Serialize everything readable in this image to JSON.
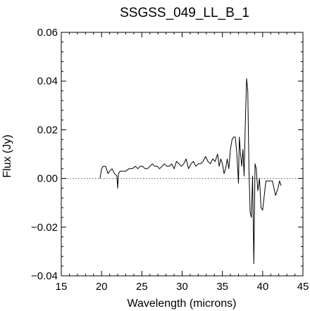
{
  "chart_data": {
    "type": "line",
    "title": "SSGSS_049_LL_B_1",
    "xlabel": "Wavelength (microns)",
    "ylabel": "Flux (Jy)",
    "xlim": [
      15,
      45
    ],
    "ylim": [
      -0.04,
      0.06
    ],
    "x_ticks": [
      15,
      20,
      25,
      30,
      35,
      40,
      45
    ],
    "y_ticks": [
      -0.04,
      -0.02,
      0.0,
      0.02,
      0.04,
      0.06
    ],
    "x_tick_labels": [
      "15",
      "20",
      "25",
      "30",
      "35",
      "40",
      "45"
    ],
    "y_tick_labels": [
      "−0.04",
      "−0.02",
      "0.00",
      "0.02",
      "0.04",
      "0.06"
    ],
    "zero_line": true,
    "grid": false,
    "series": [
      {
        "color": "#000000",
        "x": [
          19.8,
          20.0,
          20.2,
          20.5,
          20.8,
          21.0,
          21.3,
          21.6,
          21.9,
          22.0,
          22.1,
          22.3,
          22.6,
          23.0,
          23.4,
          23.8,
          24.2,
          24.5,
          24.8,
          25.1,
          25.4,
          25.7,
          26.0,
          26.3,
          26.6,
          26.9,
          27.2,
          27.5,
          27.8,
          28.1,
          28.4,
          28.7,
          29.0,
          29.3,
          29.6,
          29.9,
          30.2,
          30.5,
          30.8,
          31.1,
          31.4,
          31.7,
          32.0,
          32.3,
          32.6,
          32.9,
          33.2,
          33.5,
          33.8,
          34.1,
          34.4,
          34.6,
          34.8,
          35.0,
          35.2,
          35.4,
          35.6,
          35.8,
          36.0,
          36.2,
          36.4,
          36.6,
          36.8,
          37.0,
          37.1,
          37.25,
          37.4,
          37.55,
          37.7,
          37.85,
          38.0,
          38.15,
          38.3,
          38.45,
          38.6,
          38.75,
          38.9,
          39.05,
          39.2,
          39.4,
          39.6,
          39.8,
          40.0,
          40.4,
          40.8,
          41.2,
          41.6,
          41.9,
          42.1,
          42.3
        ],
        "y": [
          0.0,
          0.004,
          0.005,
          0.005,
          0.002,
          0.003,
          0.004,
          0.002,
          0.001,
          -0.004,
          0.002,
          0.003,
          0.003,
          0.003,
          0.004,
          0.004,
          0.005,
          0.004,
          0.005,
          0.005,
          0.004,
          0.004,
          0.005,
          0.006,
          0.005,
          0.005,
          0.004,
          0.005,
          0.006,
          0.005,
          0.005,
          0.006,
          0.004,
          0.007,
          0.006,
          0.005,
          0.006,
          0.008,
          0.004,
          0.006,
          0.007,
          0.005,
          0.006,
          0.006,
          0.007,
          0.009,
          0.007,
          0.006,
          0.008,
          0.007,
          0.01,
          0.005,
          0.008,
          0.006,
          0.002,
          0.004,
          0.008,
          0.004,
          0.012,
          0.016,
          0.017,
          0.017,
          0.01,
          -0.002,
          0.017,
          0.01,
          0.005,
          0.012,
          0.001,
          0.024,
          0.041,
          0.036,
          0.003,
          -0.014,
          -0.016,
          0.001,
          -0.035,
          0.006,
          0.004,
          -0.005,
          0.0,
          -0.012,
          -0.013,
          -0.001,
          -0.001,
          -0.001,
          -0.007,
          -0.004,
          -0.001,
          -0.003
        ]
      }
    ]
  }
}
